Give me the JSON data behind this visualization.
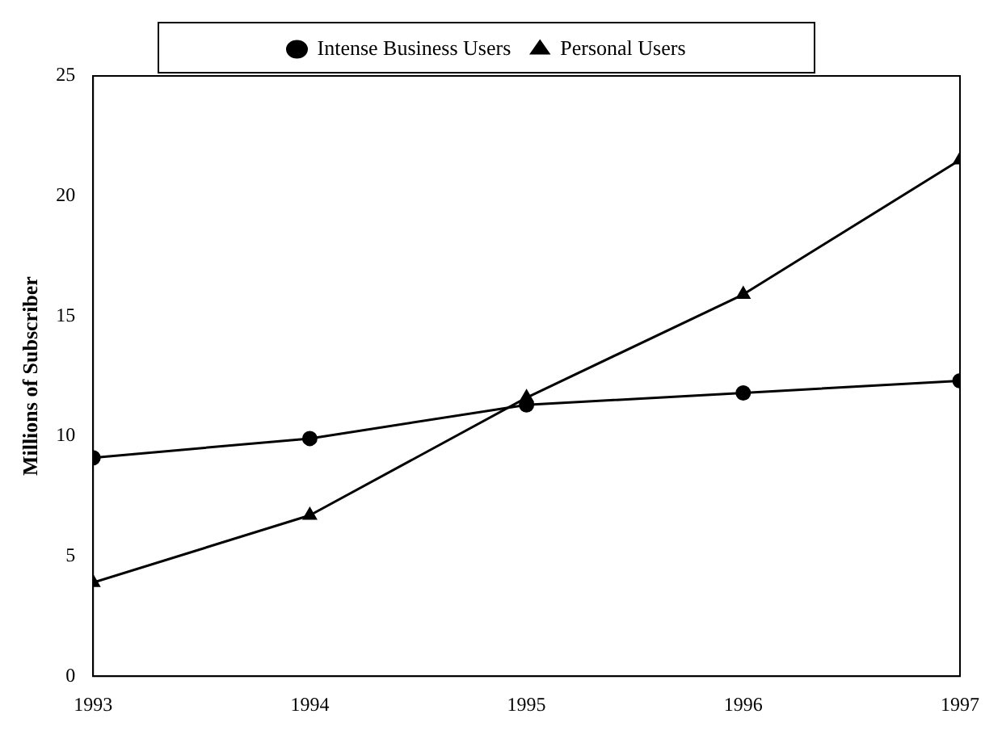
{
  "chart_data": {
    "type": "line",
    "ylabel": "Millions of Subscriber",
    "x": [
      1993,
      1994,
      1995,
      1996,
      1997
    ],
    "series": [
      {
        "name": "Intense Business Users",
        "color": "#000000",
        "marker": "circle",
        "values": [
          9.1,
          9.9,
          11.3,
          11.8,
          12.3
        ]
      },
      {
        "name": "Personal Users",
        "color": "#000000",
        "marker": "triangle",
        "values": [
          3.9,
          6.7,
          11.6,
          15.9,
          21.5
        ]
      }
    ],
    "xlim": [
      1993,
      1997
    ],
    "xticks": [
      1993,
      1994,
      1995,
      1996,
      1997
    ],
    "ylim": [
      0,
      25
    ],
    "yticks": [
      0,
      5,
      10,
      15,
      20,
      25
    ],
    "grid": false,
    "legend": "top",
    "line_style": "solid"
  }
}
